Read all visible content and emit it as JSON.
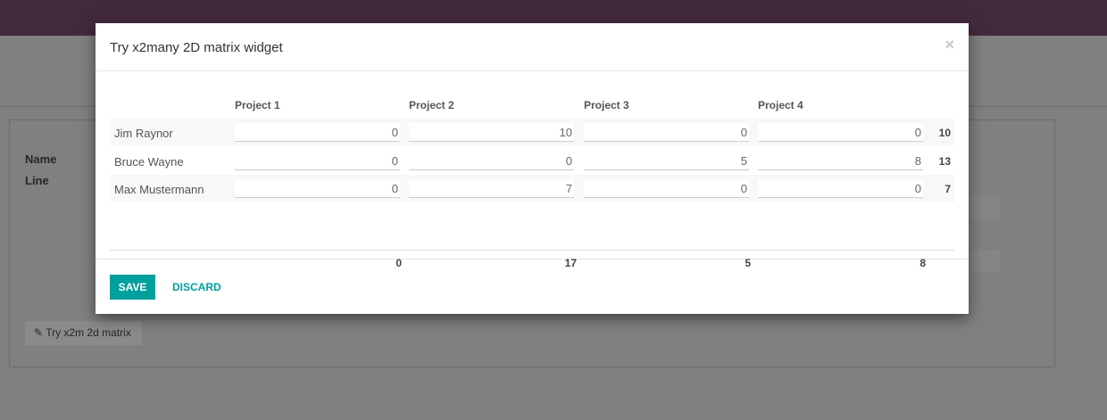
{
  "background": {
    "fields": [
      "Name",
      "Line"
    ],
    "button_label": "Try x2m 2d matrix",
    "button_icon": "edit-icon"
  },
  "dialog": {
    "title": "Try x2many 2D matrix widget",
    "close_label": "×",
    "columns": [
      "Project 1",
      "Project 2",
      "Project 3",
      "Project 4"
    ],
    "rows": [
      {
        "name": "Jim Raynor",
        "values": [
          "0",
          "10",
          "0",
          "0"
        ],
        "total": "10"
      },
      {
        "name": "Bruce Wayne",
        "values": [
          "0",
          "0",
          "5",
          "8"
        ],
        "total": "13"
      },
      {
        "name": "Max Mustermann",
        "values": [
          "0",
          "7",
          "0",
          "0"
        ],
        "total": "7"
      }
    ],
    "column_totals": [
      "0",
      "17",
      "5",
      "8"
    ],
    "save_label": "SAVE",
    "discard_label": "DISCARD"
  },
  "colors": {
    "accent": "#00a09d",
    "topbar": "#43293e"
  }
}
